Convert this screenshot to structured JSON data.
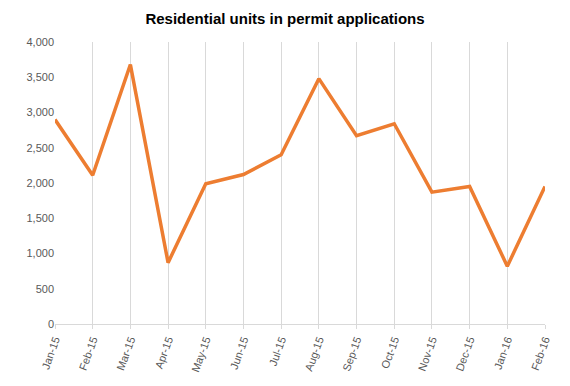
{
  "chart_data": {
    "type": "line",
    "title": "Residential units in permit applications",
    "categories": [
      "Jan-15",
      "Feb-15",
      "Mar-15",
      "Apr-15",
      "May-15",
      "Jun-15",
      "Jul-15",
      "Aug-15",
      "Sep-15",
      "Oct-15",
      "Nov-15",
      "Dec-15",
      "Jan-16",
      "Feb-16"
    ],
    "values": [
      2900,
      2110,
      3680,
      870,
      1990,
      2120,
      2400,
      3480,
      2670,
      2840,
      1870,
      1950,
      820,
      1950
    ],
    "color": "#ed7d31",
    "ylim": [
      0,
      4000
    ],
    "yticks": [
      0,
      500,
      {
        "value": 1000,
        "label": "1,000"
      },
      {
        "value": 1500,
        "label": "1,500"
      },
      {
        "value": 2000,
        "label": "2,000"
      },
      {
        "value": 2500,
        "label": "2,500"
      },
      {
        "value": 3000,
        "label": "3,000"
      },
      {
        "value": 3500,
        "label": "3,500"
      },
      {
        "value": 4000,
        "label": "4,000"
      }
    ],
    "grid": true
  }
}
